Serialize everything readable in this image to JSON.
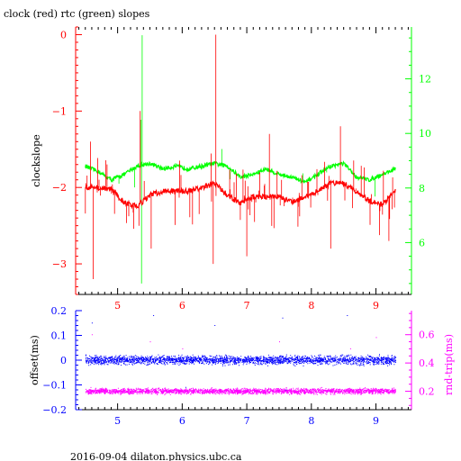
{
  "header": {
    "title": "clock (red) rtc (green) slopes"
  },
  "footer": {
    "label": "2016-09-04 dilaton.physics.ubc.ca"
  },
  "colors": {
    "axis": "#000000",
    "clock": "#ff0000",
    "rtc": "#00ff00",
    "offset": "#0000ff",
    "roundtrip": "#ff00ff",
    "xticks": "#0000ff"
  },
  "chart_data": [
    {
      "type": "line",
      "title": "clock (red) rtc (green) slopes",
      "xlabel": "",
      "ylabel": "clockslope",
      "y2label": "",
      "xlim": [
        4.35,
        9.55
      ],
      "ylim": [
        -3.4,
        0.1
      ],
      "y2lim": [
        4.1,
        13.9
      ],
      "xticks": [
        5,
        6,
        7,
        8,
        9
      ],
      "yticks": [
        0,
        -1,
        -2,
        -3
      ],
      "y2ticks": [
        6,
        8,
        10,
        12
      ],
      "grid": false,
      "series": [
        {
          "name": "clock",
          "axis": "left",
          "baseline_x": [
            4.5,
            4.7,
            4.9,
            5.1,
            5.3,
            5.5,
            5.7,
            5.9,
            6.1,
            6.3,
            6.5,
            6.7,
            6.9,
            7.1,
            7.3,
            7.5,
            7.7,
            7.9,
            8.1,
            8.3,
            8.5,
            8.7,
            8.9,
            9.1,
            9.3
          ],
          "baseline_y": [
            -2.0,
            -2.0,
            -2.02,
            -2.2,
            -2.25,
            -2.1,
            -2.05,
            -2.05,
            -2.05,
            -2.0,
            -1.95,
            -2.1,
            -2.2,
            -2.12,
            -2.12,
            -2.12,
            -2.2,
            -2.12,
            -2.05,
            -1.95,
            -1.95,
            -2.05,
            -2.18,
            -2.22,
            -2.05
          ],
          "spike_high": [
            [
              6.52,
              0.0
            ],
            [
              5.35,
              -1.0
            ],
            [
              4.58,
              -1.4
            ],
            [
              7.35,
              -1.3
            ],
            [
              8.45,
              -1.2
            ]
          ],
          "spike_low": [
            [
              4.62,
              -3.2
            ],
            [
              5.52,
              -2.8
            ],
            [
              6.48,
              -3.0
            ],
            [
              7.0,
              -2.9
            ],
            [
              8.3,
              -2.8
            ],
            [
              9.2,
              -2.7
            ]
          ]
        },
        {
          "name": "rtc",
          "axis": "right",
          "baseline_x": [
            4.5,
            4.7,
            4.9,
            5.1,
            5.3,
            5.5,
            5.7,
            5.9,
            6.1,
            6.3,
            6.5,
            6.7,
            6.9,
            7.1,
            7.3,
            7.5,
            7.7,
            7.9,
            8.1,
            8.3,
            8.5,
            8.7,
            8.9,
            9.1,
            9.3
          ],
          "baseline_y": [
            8.8,
            8.6,
            8.3,
            8.5,
            8.8,
            8.9,
            8.7,
            8.8,
            8.7,
            8.8,
            8.9,
            8.8,
            8.4,
            8.5,
            8.7,
            8.5,
            8.4,
            8.2,
            8.5,
            8.8,
            8.9,
            8.4,
            8.3,
            8.5,
            8.7
          ],
          "spike_high": [
            [
              5.38,
              13.6
            ],
            [
              5.36,
              10.5
            ]
          ],
          "spike_low": [
            [
              5.37,
              4.5
            ]
          ]
        }
      ]
    },
    {
      "type": "scatter",
      "title": "",
      "xlabel": "",
      "ylabel": "offset(ms)",
      "y2label": "rnd-trip(ms)",
      "xlim": [
        4.35,
        9.55
      ],
      "ylim": [
        -0.2,
        0.2
      ],
      "y2lim": [
        0.07,
        0.77
      ],
      "xticks": [
        5,
        6,
        7,
        8,
        9
      ],
      "yticks": [
        0.2,
        0.1,
        0,
        -0.1,
        -0.2
      ],
      "ytick_labels": [
        "0.2",
        "0.1",
        "0",
        "−0.1",
        "−0.2"
      ],
      "y2ticks": [
        0.2,
        0.4,
        0.6
      ],
      "grid": false,
      "series": [
        {
          "name": "offset",
          "axis": "left",
          "x_range": [
            4.5,
            9.3
          ],
          "center": 0.0,
          "spread": 0.025,
          "outliers": [
            [
              4.6,
              0.15
            ],
            [
              5.55,
              0.18
            ],
            [
              6.5,
              0.14
            ],
            [
              7.55,
              0.17
            ],
            [
              8.55,
              0.18
            ],
            [
              6.05,
              -0.11
            ],
            [
              7.6,
              -0.12
            ]
          ]
        },
        {
          "name": "roundtrip",
          "axis": "right",
          "x_range": [
            4.5,
            9.3
          ],
          "center": 0.2,
          "spread": 0.028,
          "outliers": [
            [
              4.6,
              0.6
            ],
            [
              5.5,
              0.55
            ],
            [
              6.0,
              0.5
            ],
            [
              7.5,
              0.55
            ],
            [
              8.6,
              0.5
            ],
            [
              9.0,
              0.58
            ]
          ]
        }
      ]
    }
  ]
}
